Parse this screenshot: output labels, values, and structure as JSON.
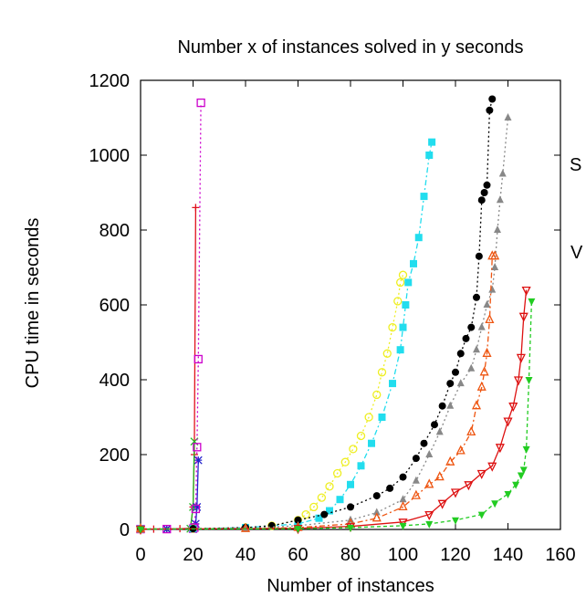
{
  "chart_data": {
    "type": "line",
    "title": "Number x of instances solved in y seconds",
    "xlabel": "Number of instances",
    "ylabel": "CPU time in seconds",
    "xlim": [
      0,
      160
    ],
    "ylim": [
      0,
      1200
    ],
    "xticks": [
      "0",
      "20",
      "40",
      "60",
      "80",
      "100",
      "120",
      "140",
      "160"
    ],
    "yticks": [
      "0",
      "200",
      "400",
      "600",
      "800",
      "1000",
      "1200"
    ],
    "grid": false,
    "legend_fragments": [
      "S",
      "V"
    ],
    "series": [
      {
        "color": "#e0101a",
        "marker": "plus",
        "dash": "",
        "x": [
          0,
          5,
          10,
          15,
          19,
          20,
          20.5,
          21
        ],
        "y": [
          1,
          1,
          1,
          2,
          3,
          60,
          200,
          860
        ]
      },
      {
        "color": "#22bb22",
        "marker": "cross",
        "dash": "",
        "x": [
          0,
          10,
          19,
          20,
          20.5
        ],
        "y": [
          1,
          1,
          2,
          60,
          235
        ]
      },
      {
        "color": "#2222cc",
        "marker": "star",
        "dash": "",
        "x": [
          0,
          10,
          20,
          21,
          21.5,
          22
        ],
        "y": [
          1,
          1,
          2,
          15,
          60,
          185
        ]
      },
      {
        "color": "#cc00cc",
        "marker": "square",
        "dash": "2,3",
        "x": [
          0,
          10,
          20,
          20.5,
          21,
          21.5,
          22,
          23
        ],
        "y": [
          1,
          1,
          2,
          5,
          55,
          220,
          455,
          1140
        ]
      },
      {
        "color": "#eeee22",
        "marker": "circle-open",
        "dash": "2,3",
        "x": [
          0,
          20,
          40,
          50,
          60,
          63,
          66,
          69,
          72,
          75,
          78,
          81,
          84,
          87,
          90,
          92,
          94,
          96,
          98,
          99,
          100
        ],
        "y": [
          1,
          2,
          5,
          10,
          25,
          40,
          60,
          85,
          115,
          150,
          180,
          215,
          250,
          300,
          360,
          420,
          470,
          540,
          610,
          660,
          680
        ]
      },
      {
        "color": "#22ddee",
        "marker": "square-filled",
        "dash": "6,3,2,3",
        "x": [
          0,
          20,
          40,
          60,
          68,
          72,
          76,
          80,
          84,
          88,
          92,
          96,
          99,
          100,
          101,
          102,
          104,
          106,
          108,
          110,
          111
        ],
        "y": [
          1,
          2,
          5,
          15,
          30,
          50,
          80,
          120,
          170,
          230,
          300,
          390,
          480,
          540,
          600,
          660,
          710,
          780,
          890,
          1000,
          1035
        ]
      },
      {
        "color": "#000000",
        "marker": "circle-filled",
        "dash": "2,3",
        "x": [
          0,
          20,
          40,
          50,
          60,
          70,
          80,
          90,
          95,
          100,
          105,
          108,
          112,
          115,
          118,
          120,
          122,
          124,
          126,
          128,
          129,
          130,
          131,
          132,
          133,
          134
        ],
        "y": [
          1,
          2,
          5,
          10,
          25,
          40,
          60,
          90,
          110,
          140,
          190,
          230,
          280,
          330,
          390,
          420,
          470,
          510,
          540,
          620,
          730,
          880,
          900,
          920,
          1120,
          1150
        ]
      },
      {
        "color": "#888888",
        "marker": "triangle",
        "dash": "2,3",
        "x": [
          0,
          40,
          60,
          80,
          90,
          100,
          105,
          110,
          114,
          118,
          122,
          126,
          128,
          130,
          132,
          134,
          135,
          136,
          137,
          138,
          140
        ],
        "y": [
          1,
          3,
          10,
          25,
          45,
          80,
          130,
          200,
          260,
          330,
          390,
          430,
          480,
          540,
          600,
          640,
          700,
          800,
          880,
          950,
          1100
        ]
      },
      {
        "color": "#ee5511",
        "marker": "triangle-open",
        "dash": "6,3,2,3",
        "x": [
          0,
          40,
          60,
          80,
          90,
          100,
          105,
          110,
          114,
          118,
          122,
          126,
          128,
          130,
          131,
          132,
          133,
          134,
          135
        ],
        "y": [
          1,
          2,
          5,
          15,
          30,
          60,
          90,
          120,
          140,
          180,
          210,
          260,
          330,
          380,
          420,
          470,
          560,
          730,
          730
        ]
      },
      {
        "color": "#dd1111",
        "marker": "triangle-down-open",
        "dash": "",
        "x": [
          0,
          60,
          80,
          100,
          110,
          115,
          120,
          125,
          130,
          134,
          137,
          140,
          142,
          144,
          145,
          146,
          147
        ],
        "y": [
          1,
          3,
          8,
          20,
          40,
          70,
          100,
          120,
          150,
          170,
          220,
          290,
          330,
          400,
          460,
          570,
          640
        ]
      },
      {
        "color": "#22cc22",
        "marker": "triangle-down",
        "dash": "4,3",
        "x": [
          0,
          60,
          80,
          100,
          110,
          120,
          130,
          135,
          140,
          143,
          145,
          146,
          147,
          148,
          149
        ],
        "y": [
          1,
          2,
          5,
          10,
          15,
          25,
          40,
          70,
          95,
          120,
          145,
          160,
          215,
          400,
          610
        ]
      }
    ]
  }
}
